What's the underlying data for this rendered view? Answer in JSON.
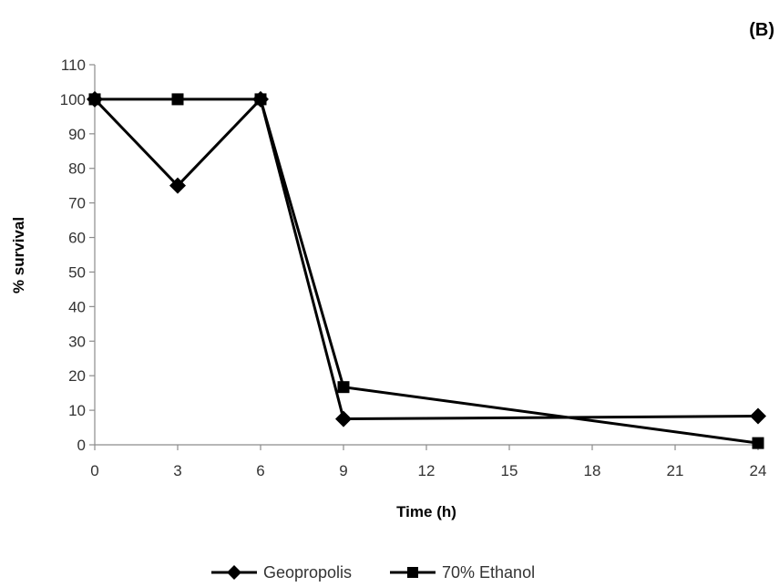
{
  "panel_label": "(B)",
  "chart_data": {
    "type": "line",
    "xlabel": "Time (h)",
    "ylabel": "% survival",
    "x_ticks": [
      0,
      3,
      6,
      9,
      12,
      15,
      18,
      21,
      24
    ],
    "y_ticks": [
      0,
      10,
      20,
      30,
      40,
      50,
      60,
      70,
      80,
      90,
      100,
      110
    ],
    "xlim": [
      0,
      24
    ],
    "ylim": [
      0,
      110
    ],
    "grid": false,
    "legend_position": "bottom",
    "series": [
      {
        "name": "Geopropolis",
        "marker": "diamond",
        "color": "#000000",
        "x": [
          0,
          3,
          6,
          9,
          24
        ],
        "y": [
          100,
          75,
          100,
          7.5,
          8.3
        ]
      },
      {
        "name": "70% Ethanol",
        "marker": "square",
        "color": "#000000",
        "x": [
          0,
          3,
          6,
          9,
          24
        ],
        "y": [
          100,
          100,
          100,
          16.7,
          0.5
        ]
      }
    ]
  }
}
